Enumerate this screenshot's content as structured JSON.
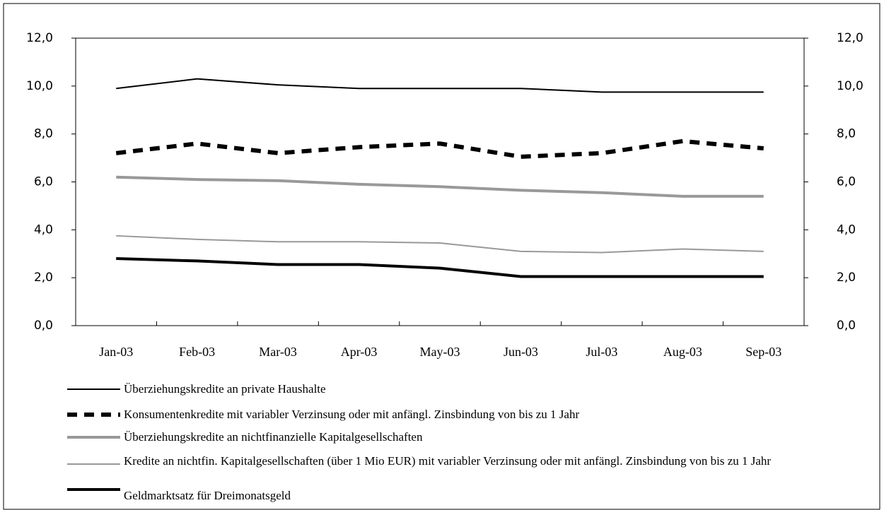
{
  "chart_data": {
    "type": "line",
    "categories": [
      "Jan-03",
      "Feb-03",
      "Mar-03",
      "Apr-03",
      "May-03",
      "Jun-03",
      "Jul-03",
      "Aug-03",
      "Sep-03"
    ],
    "series": [
      {
        "name": "Überziehungskredite an private Haushalte",
        "color": "#000000",
        "line_width": 2,
        "dashed": false,
        "values": [
          9.9,
          10.3,
          10.05,
          9.9,
          9.9,
          9.9,
          9.75,
          9.75,
          9.75
        ]
      },
      {
        "name": "Konsumentenkredite mit variabler Verzinsung oder mit anfängl. Zinsbindung von bis zu 1 Jahr",
        "color": "#000000",
        "line_width": 6,
        "dashed": true,
        "values": [
          7.2,
          7.6,
          7.2,
          7.45,
          7.6,
          7.05,
          7.2,
          7.7,
          7.4
        ]
      },
      {
        "name": "Überziehungskredite an nichtfinanzielle Kapitalgesellschaften",
        "color": "#999999",
        "line_width": 4,
        "dashed": false,
        "values": [
          6.2,
          6.1,
          6.05,
          5.9,
          5.8,
          5.65,
          5.55,
          5.4,
          5.4
        ]
      },
      {
        "name": "Kredite an nichtfin. Kapitalgesellschaften (über 1 Mio EUR) mit variabler Verzinsung oder mit anfängl. Zinsbindung von bis zu 1 Jahr",
        "color": "#999999",
        "line_width": 2,
        "dashed": false,
        "values": [
          3.75,
          3.6,
          3.5,
          3.5,
          3.45,
          3.1,
          3.05,
          3.2,
          3.1
        ]
      },
      {
        "name": "Geldmarktsatz für Dreimonatsgeld",
        "color": "#000000",
        "line_width": 4,
        "dashed": false,
        "values": [
          2.8,
          2.7,
          2.55,
          2.55,
          2.4,
          2.05,
          2.05,
          2.05,
          2.05
        ]
      }
    ],
    "ylim": [
      0,
      12
    ],
    "yticks": [
      {
        "value": 0,
        "label": "0,0"
      },
      {
        "value": 2,
        "label": "2,0"
      },
      {
        "value": 4,
        "label": "4,0"
      },
      {
        "value": 6,
        "label": "6,0"
      },
      {
        "value": 8,
        "label": "8,0"
      },
      {
        "value": 10,
        "label": "10,0"
      },
      {
        "value": 12,
        "label": "12,0"
      }
    ],
    "y2lim": [
      0,
      12
    ],
    "y2ticks": [
      {
        "value": 0,
        "label": "0,0"
      },
      {
        "value": 2,
        "label": "2,0"
      },
      {
        "value": 4,
        "label": "4,0"
      },
      {
        "value": 6,
        "label": "6,0"
      },
      {
        "value": 8,
        "label": "8,0"
      },
      {
        "value": 10,
        "label": "10,0"
      },
      {
        "value": 12,
        "label": "12,0"
      }
    ],
    "grid": false
  }
}
